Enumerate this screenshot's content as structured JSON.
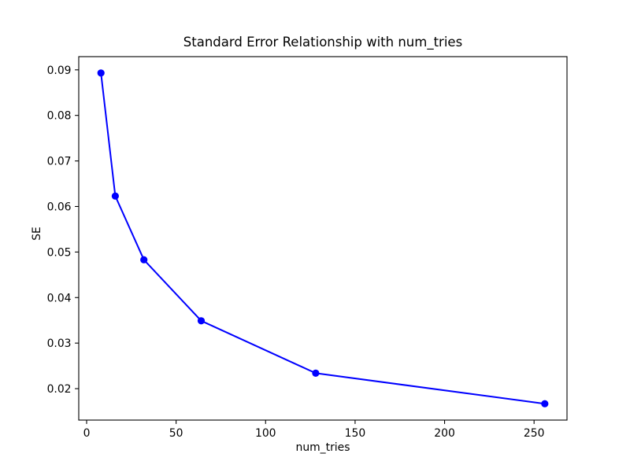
{
  "window": {
    "background": "#ffffff"
  },
  "chart_data": {
    "type": "line",
    "title": "Standard Error Relationship with num_tries",
    "xlabel": "num_tries",
    "ylabel": "SE",
    "x": [
      8,
      16,
      32,
      64,
      128,
      256
    ],
    "y": [
      0.0893,
      0.0623,
      0.0483,
      0.0349,
      0.0234,
      0.0167
    ],
    "series": [
      {
        "name": "SE",
        "x": [
          8,
          16,
          32,
          64,
          128,
          256
        ],
        "y": [
          0.0893,
          0.0623,
          0.0483,
          0.0349,
          0.0234,
          0.0167
        ]
      }
    ],
    "line_color": "#0000ff",
    "marker": "circle",
    "marker_color": "#0000ff",
    "axis_color": "#000000",
    "text_color": "#000000",
    "xlim": [
      -4.4,
      268.4
    ],
    "ylim": [
      0.0131,
      0.0929
    ],
    "xtick_values": [
      0,
      50,
      100,
      150,
      200,
      250
    ],
    "xtick_labels": [
      "0",
      "50",
      "100",
      "150",
      "200",
      "250"
    ],
    "ytick_values": [
      0.02,
      0.03,
      0.04,
      0.05,
      0.06,
      0.07,
      0.08,
      0.09
    ],
    "ytick_labels": [
      "0.02",
      "0.03",
      "0.04",
      "0.05",
      "0.06",
      "0.07",
      "0.08",
      "0.09"
    ],
    "grid": false,
    "legend": null
  }
}
